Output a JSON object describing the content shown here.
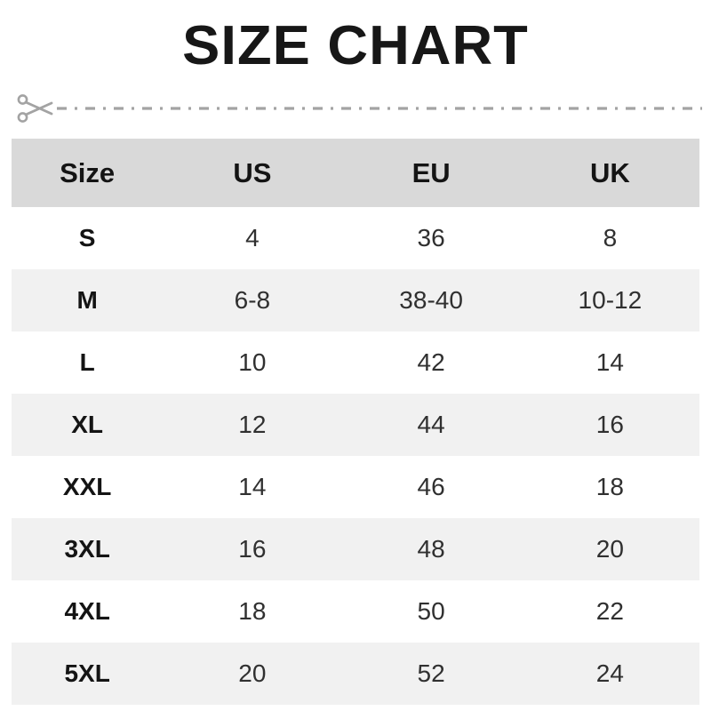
{
  "title": "SIZE CHART",
  "cut_line": {
    "icon": "scissors-icon",
    "line_color": "#a3a3a3"
  },
  "colors": {
    "header_bg": "#d9d9d9",
    "alt_row_bg": "#f1f1f1",
    "text_dark": "#141414",
    "text_value": "#303030"
  },
  "table": {
    "headers": [
      "Size",
      "US",
      "EU",
      "UK"
    ],
    "rows": [
      [
        "S",
        "4",
        "36",
        "8"
      ],
      [
        "M",
        "6-8",
        "38-40",
        "10-12"
      ],
      [
        "L",
        "10",
        "42",
        "14"
      ],
      [
        "XL",
        "12",
        "44",
        "16"
      ],
      [
        "XXL",
        "14",
        "46",
        "18"
      ],
      [
        "3XL",
        "16",
        "48",
        "20"
      ],
      [
        "4XL",
        "18",
        "50",
        "22"
      ],
      [
        "5XL",
        "20",
        "52",
        "24"
      ]
    ]
  }
}
